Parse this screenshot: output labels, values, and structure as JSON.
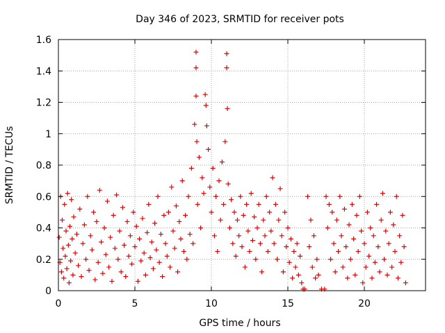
{
  "chart_data": {
    "type": "scatter",
    "title": "Day 346 of 2023, SRMTID for receiver pots",
    "xlabel": "GPS time / hours",
    "ylabel": "SRMTID / TECUs",
    "xlim": [
      0,
      24
    ],
    "ylim": [
      0,
      1.6
    ],
    "x_ticks": [
      {
        "value": 0,
        "label": "0"
      },
      {
        "value": 5,
        "label": "5"
      },
      {
        "value": 10,
        "label": "10"
      },
      {
        "value": 15,
        "label": "15"
      },
      {
        "value": 20,
        "label": "20"
      }
    ],
    "y_ticks": [
      {
        "value": 0,
        "label": "0"
      },
      {
        "value": 0.2,
        "label": "0.2"
      },
      {
        "value": 0.4,
        "label": "0.4"
      },
      {
        "value": 0.6,
        "label": "0.6"
      },
      {
        "value": 0.8,
        "label": "0.8"
      },
      {
        "value": 1.0,
        "label": "1"
      },
      {
        "value": 1.2,
        "label": "1.2"
      },
      {
        "value": 1.4,
        "label": "1.4"
      },
      {
        "value": 1.6,
        "label": "1.6"
      }
    ],
    "grid": true,
    "marker": "+",
    "color": "#e00000",
    "series": [
      {
        "name": "SRMTID",
        "points": [
          [
            0.05,
            0.34
          ],
          [
            0.1,
            0.18
          ],
          [
            0.15,
            0.6
          ],
          [
            0.2,
            0.12
          ],
          [
            0.25,
            0.45
          ],
          [
            0.3,
            0.27
          ],
          [
            0.35,
            0.08
          ],
          [
            0.4,
            0.55
          ],
          [
            0.45,
            0.22
          ],
          [
            0.5,
            0.38
          ],
          [
            0.55,
            0.14
          ],
          [
            0.6,
            0.62
          ],
          [
            0.65,
            0.29
          ],
          [
            0.7,
            0.05
          ],
          [
            0.75,
            0.41
          ],
          [
            0.8,
            0.19
          ],
          [
            0.85,
            0.58
          ],
          [
            0.9,
            0.33
          ],
          [
            0.95,
            0.1
          ],
          [
            1.0,
            0.47
          ],
          [
            1.1,
            0.24
          ],
          [
            1.2,
            0.36
          ],
          [
            1.3,
            0.16
          ],
          [
            1.4,
            0.52
          ],
          [
            1.5,
            0.09
          ],
          [
            1.6,
            0.3
          ],
          [
            1.7,
            0.42
          ],
          [
            1.8,
            0.2
          ],
          [
            1.9,
            0.6
          ],
          [
            2.0,
            0.13
          ],
          [
            2.1,
            0.35
          ],
          [
            2.2,
            0.26
          ],
          [
            2.3,
            0.5
          ],
          [
            2.4,
            0.07
          ],
          [
            2.5,
            0.44
          ],
          [
            2.6,
            0.18
          ],
          [
            2.7,
            0.64
          ],
          [
            2.8,
            0.31
          ],
          [
            2.9,
            0.11
          ],
          [
            3.0,
            0.4
          ],
          [
            3.1,
            0.23
          ],
          [
            3.2,
            0.57
          ],
          [
            3.3,
            0.15
          ],
          [
            3.4,
            0.34
          ],
          [
            3.5,
            0.06
          ],
          [
            3.6,
            0.48
          ],
          [
            3.7,
            0.27
          ],
          [
            3.8,
            0.61
          ],
          [
            3.9,
            0.2
          ],
          [
            4.0,
            0.38
          ],
          [
            4.1,
            0.12
          ],
          [
            4.2,
            0.53
          ],
          [
            4.3,
            0.29
          ],
          [
            4.4,
            0.09
          ],
          [
            4.5,
            0.44
          ],
          [
            4.6,
            0.22
          ],
          [
            4.7,
            0.35
          ],
          [
            4.8,
            0.17
          ],
          [
            4.9,
            0.5
          ],
          [
            5.0,
            0.28
          ],
          [
            5.1,
            0.41
          ],
          [
            5.2,
            0.06
          ],
          [
            5.3,
            0.33
          ],
          [
            5.4,
            0.19
          ],
          [
            5.5,
            0.46
          ],
          [
            5.6,
            0.24
          ],
          [
            5.7,
            0.1
          ],
          [
            5.8,
            0.37
          ],
          [
            5.9,
            0.55
          ],
          [
            6.0,
            0.21
          ],
          [
            6.1,
            0.31
          ],
          [
            6.2,
            0.14
          ],
          [
            6.3,
            0.43
          ],
          [
            6.4,
            0.26
          ],
          [
            6.5,
            0.6
          ],
          [
            6.6,
            0.18
          ],
          [
            6.7,
            0.36
          ],
          [
            6.8,
            0.09
          ],
          [
            6.9,
            0.48
          ],
          [
            7.0,
            0.3
          ],
          [
            7.1,
            0.22
          ],
          [
            7.2,
            0.5
          ],
          [
            7.3,
            0.15
          ],
          [
            7.4,
            0.66
          ],
          [
            7.5,
            0.38
          ],
          [
            7.6,
            0.27
          ],
          [
            7.7,
            0.54
          ],
          [
            7.8,
            0.12
          ],
          [
            7.9,
            0.44
          ],
          [
            8.0,
            0.33
          ],
          [
            8.1,
            0.7
          ],
          [
            8.2,
            0.25
          ],
          [
            8.3,
            0.48
          ],
          [
            8.4,
            0.2
          ],
          [
            8.5,
            0.6
          ],
          [
            8.6,
            0.36
          ],
          [
            8.7,
            0.78
          ],
          [
            8.8,
            0.3
          ],
          [
            8.9,
            1.06
          ],
          [
            9.0,
            1.52
          ],
          [
            9.0,
            1.42
          ],
          [
            9.0,
            1.24
          ],
          [
            9.05,
            0.95
          ],
          [
            9.1,
            0.55
          ],
          [
            9.2,
            0.85
          ],
          [
            9.3,
            0.4
          ],
          [
            9.4,
            0.72
          ],
          [
            9.5,
            0.62
          ],
          [
            9.6,
            1.25
          ],
          [
            9.65,
            1.18
          ],
          [
            9.7,
            1.05
          ],
          [
            9.8,
            0.9
          ],
          [
            9.9,
            0.66
          ],
          [
            10.0,
            0.5
          ],
          [
            10.1,
            0.78
          ],
          [
            10.2,
            0.35
          ],
          [
            10.3,
            0.6
          ],
          [
            10.4,
            0.25
          ],
          [
            10.5,
            0.7
          ],
          [
            10.6,
            0.45
          ],
          [
            10.7,
            0.82
          ],
          [
            10.8,
            0.55
          ],
          [
            10.9,
            0.95
          ],
          [
            11.0,
            1.51
          ],
          [
            11.0,
            1.42
          ],
          [
            11.05,
            1.16
          ],
          [
            11.1,
            0.68
          ],
          [
            11.2,
            0.4
          ],
          [
            11.3,
            0.58
          ],
          [
            11.4,
            0.3
          ],
          [
            11.5,
            0.5
          ],
          [
            11.6,
            0.22
          ],
          [
            11.7,
            0.45
          ],
          [
            11.8,
            0.35
          ],
          [
            11.9,
            0.6
          ],
          [
            12.0,
            0.28
          ],
          [
            12.1,
            0.48
          ],
          [
            12.2,
            0.15
          ],
          [
            12.3,
            0.55
          ],
          [
            12.4,
            0.38
          ],
          [
            12.5,
            0.25
          ],
          [
            12.6,
            0.62
          ],
          [
            12.7,
            0.32
          ],
          [
            12.8,
            0.47
          ],
          [
            12.9,
            0.2
          ],
          [
            13.0,
            0.4
          ],
          [
            13.1,
            0.55
          ],
          [
            13.2,
            0.3
          ],
          [
            13.3,
            0.12
          ],
          [
            13.4,
            0.45
          ],
          [
            13.5,
            0.35
          ],
          [
            13.6,
            0.6
          ],
          [
            13.7,
            0.25
          ],
          [
            13.8,
            0.5
          ],
          [
            13.9,
            0.38
          ],
          [
            14.0,
            0.72
          ],
          [
            14.1,
            0.3
          ],
          [
            14.2,
            0.55
          ],
          [
            14.3,
            0.2
          ],
          [
            14.4,
            0.45
          ],
          [
            14.5,
            0.65
          ],
          [
            14.6,
            0.35
          ],
          [
            14.7,
            0.12
          ],
          [
            14.8,
            0.5
          ],
          [
            14.9,
            0.28
          ],
          [
            15.0,
            0.4
          ],
          [
            15.1,
            0.18
          ],
          [
            15.2,
            0.33
          ],
          [
            15.3,
            0.08
          ],
          [
            15.4,
            0.25
          ],
          [
            15.5,
            0.15
          ],
          [
            15.6,
            0.3
          ],
          [
            15.7,
            0.1
          ],
          [
            15.8,
            0.22
          ],
          [
            15.9,
            0.05
          ],
          [
            16.0,
            0.01
          ],
          [
            16.1,
            0.01
          ],
          [
            16.3,
            0.6
          ],
          [
            16.4,
            0.28
          ],
          [
            16.5,
            0.45
          ],
          [
            16.6,
            0.15
          ],
          [
            16.7,
            0.35
          ],
          [
            16.8,
            0.08
          ],
          [
            16.9,
            0.2
          ],
          [
            17.0,
            0.1
          ],
          [
            17.2,
            0.01
          ],
          [
            17.4,
            0.01
          ],
          [
            17.5,
            0.6
          ],
          [
            17.6,
            0.4
          ],
          [
            17.7,
            0.55
          ],
          [
            17.8,
            0.2
          ],
          [
            17.9,
            0.5
          ],
          [
            18.0,
            0.3
          ],
          [
            18.1,
            0.12
          ],
          [
            18.2,
            0.45
          ],
          [
            18.3,
            0.25
          ],
          [
            18.4,
            0.6
          ],
          [
            18.5,
            0.35
          ],
          [
            18.6,
            0.15
          ],
          [
            18.7,
            0.52
          ],
          [
            18.8,
            0.28
          ],
          [
            18.9,
            0.08
          ],
          [
            19.0,
            0.42
          ],
          [
            19.1,
            0.2
          ],
          [
            19.2,
            0.55
          ],
          [
            19.3,
            0.33
          ],
          [
            19.4,
            0.1
          ],
          [
            19.5,
            0.48
          ],
          [
            19.6,
            0.25
          ],
          [
            19.7,
            0.6
          ],
          [
            19.8,
            0.38
          ],
          [
            19.9,
            0.05
          ],
          [
            20.0,
            0.3
          ],
          [
            20.1,
            0.15
          ],
          [
            20.2,
            0.5
          ],
          [
            20.3,
            0.22
          ],
          [
            20.4,
            0.4
          ],
          [
            20.5,
            0.08
          ],
          [
            20.6,
            0.35
          ],
          [
            20.7,
            0.18
          ],
          [
            20.8,
            0.55
          ],
          [
            20.9,
            0.28
          ],
          [
            21.0,
            0.12
          ],
          [
            21.1,
            0.45
          ],
          [
            21.2,
            0.62
          ],
          [
            21.3,
            0.2
          ],
          [
            21.4,
            0.38
          ],
          [
            21.5,
            0.1
          ],
          [
            21.6,
            0.3
          ],
          [
            21.7,
            0.5
          ],
          [
            21.8,
            0.15
          ],
          [
            21.9,
            0.42
          ],
          [
            22.0,
            0.25
          ],
          [
            22.1,
            0.6
          ],
          [
            22.2,
            0.08
          ],
          [
            22.3,
            0.35
          ],
          [
            22.4,
            0.18
          ],
          [
            22.5,
            0.48
          ],
          [
            22.6,
            0.28
          ],
          [
            22.7,
            0.05
          ]
        ]
      }
    ]
  }
}
